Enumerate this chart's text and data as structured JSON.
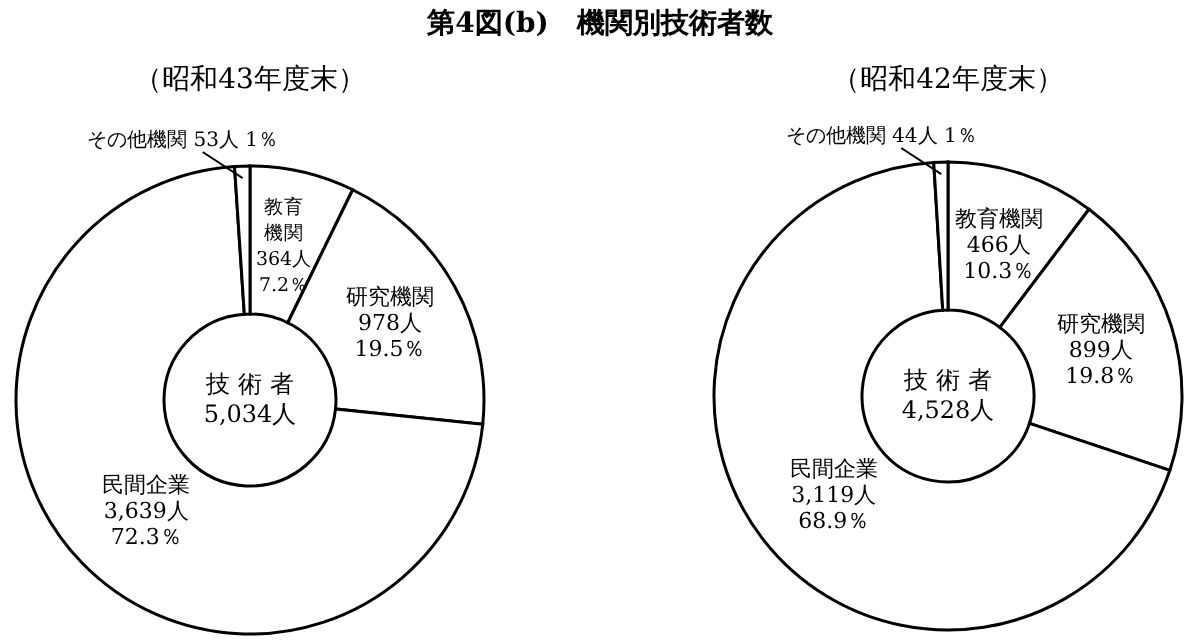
{
  "chart_data": [
    {
      "type": "donut",
      "title": "第4図(b)　機関別技術者数",
      "subtitle": "（昭和43年度末）",
      "categories": [
        "教育機関",
        "研究機関",
        "民間企業",
        "その他機関"
      ],
      "values": [
        364,
        978,
        3639,
        53
      ],
      "value_labels": [
        "364人\n7.2％",
        "978人\n19.5％",
        "3,639人\n72.3％",
        "53人\n1％"
      ],
      "colors": [
        "#ffffff",
        "#ffffff",
        "#ffffff",
        "#ffffff"
      ],
      "annotations": [
        "技 術 者",
        "5,034人"
      ]
    },
    {
      "type": "donut",
      "subtitle": "（昭和42年度末）",
      "categories": [
        "教育機関",
        "研究機関",
        "民間企業",
        "その他機関"
      ],
      "values": [
        466,
        899,
        3119,
        44
      ],
      "value_labels": [
        "466人\n10.3％",
        "899人\n19.8％",
        "3,119人\n68.9％",
        "44人\n1％"
      ],
      "colors": [
        "#ffffff",
        "#ffffff",
        "#ffffff",
        "#ffffff"
      ],
      "annotations": [
        "技 術 者",
        "4,528人"
      ]
    }
  ]
}
